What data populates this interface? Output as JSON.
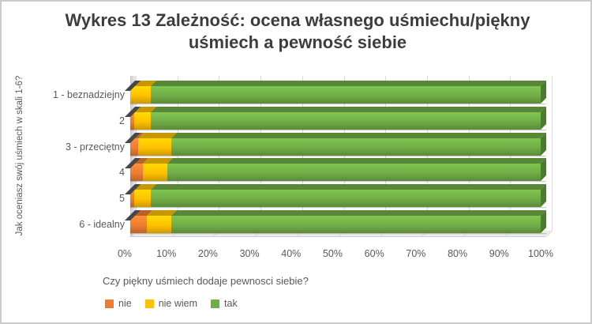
{
  "chart_data": {
    "type": "bar",
    "orientation": "horizontal",
    "stacked": true,
    "percent_stacked": true,
    "title": "Wykres 13 Zależność: ocena własnego uśmiechu/piękny uśmiech a pewność siebie",
    "y_axis_title": "Jak oceniasz swój uśmiech w skali 1-6?",
    "legend_title": "Czy piękny uśmiech dodaje pewnosci siebie?",
    "legend_position": "bottom",
    "grid": true,
    "xlim": [
      0,
      100
    ],
    "x_ticks": [
      "0%",
      "10%",
      "20%",
      "30%",
      "40%",
      "50%",
      "60%",
      "70%",
      "80%",
      "90%",
      "100%"
    ],
    "categories": [
      "1 - beznadziejny",
      "2",
      "3 - przeciętny",
      "4",
      "5",
      "6 - idealny"
    ],
    "series": [
      {
        "name": "nie",
        "color": "#ED7D31",
        "values": [
          0,
          1,
          2,
          3,
          1,
          4
        ]
      },
      {
        "name": "nie wiem",
        "color": "#FFC000",
        "values": [
          5,
          4,
          8,
          6,
          4,
          6
        ]
      },
      {
        "name": "tak",
        "color": "#70AD47",
        "values": [
          95,
          95,
          90,
          91,
          95,
          90
        ]
      }
    ]
  }
}
